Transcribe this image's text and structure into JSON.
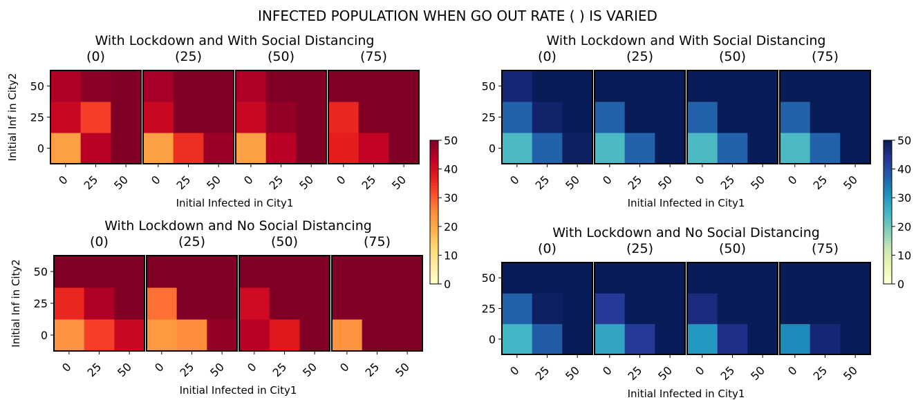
{
  "figure_title": "INFECTED POPULATION WHEN GO OUT RATE ( ) IS VARIED",
  "colors": {
    "YlOrRd": [
      "#ffffcc",
      "#ffeda0",
      "#fed976",
      "#feb24c",
      "#fd8d3c",
      "#fc4e2a",
      "#e31a1c",
      "#bd0026",
      "#800026"
    ],
    "YlGnBu": [
      "#ffffd9",
      "#edf8b1",
      "#c7e9b4",
      "#7fcdbb",
      "#41b6c4",
      "#1d91c0",
      "#225ea8",
      "#253494",
      "#081d58"
    ]
  },
  "chart_data": [
    {
      "type": "heatmap",
      "title": "With Lockdown and With Social Distancing",
      "colormap": "YlOrRd",
      "xlabel": "Initial Infected in City1",
      "ylabel": "Initial Inf in City2",
      "x_ticks": [
        "0",
        "25",
        "50"
      ],
      "y_ticks": [
        "0",
        "25",
        "50"
      ],
      "clim": [
        0,
        50
      ],
      "colorbar_ticks": [
        "0",
        "10",
        "20",
        "30",
        "40",
        "50"
      ],
      "panels": [
        {
          "rate": "(0)",
          "values": [
            [
              22,
              44,
              50
            ],
            [
              42,
              33,
              50
            ],
            [
              45,
              49,
              50
            ]
          ]
        },
        {
          "rate": "(25)",
          "values": [
            [
              22,
              35,
              47
            ],
            [
              42,
              50,
              50
            ],
            [
              46,
              50,
              50
            ]
          ]
        },
        {
          "rate": "(50)",
          "values": [
            [
              22,
              44,
              50
            ],
            [
              42,
              48,
              50
            ],
            [
              45,
              50,
              50
            ]
          ]
        },
        {
          "rate": "(75)",
          "values": [
            [
              37,
              43,
              50
            ],
            [
              36,
              50,
              50
            ],
            [
              50,
              50,
              50
            ]
          ]
        }
      ]
    },
    {
      "type": "heatmap",
      "title": "With Lockdown and No Social Distancing",
      "colormap": "YlOrRd",
      "xlabel": "Initial Infected in City1",
      "ylabel": "Initial Inf in City2",
      "x_ticks": [
        "0",
        "25",
        "50"
      ],
      "y_ticks": [
        "0",
        "25",
        "50"
      ],
      "clim": [
        0,
        50
      ],
      "panels": [
        {
          "rate": "(0)",
          "values": [
            [
              24,
              33,
              42
            ],
            [
              36,
              45,
              50
            ],
            [
              50,
              50,
              50
            ]
          ]
        },
        {
          "rate": "(25)",
          "values": [
            [
              23,
              25,
              48
            ],
            [
              28,
              50,
              50
            ],
            [
              50,
              50,
              50
            ]
          ]
        },
        {
          "rate": "(50)",
          "values": [
            [
              44,
              38,
              50
            ],
            [
              41,
              50,
              50
            ],
            [
              50,
              50,
              50
            ]
          ]
        },
        {
          "rate": "(75)",
          "values": [
            [
              24,
              50,
              50
            ],
            [
              50,
              50,
              50
            ],
            [
              50,
              50,
              50
            ]
          ]
        }
      ]
    },
    {
      "type": "heatmap",
      "title": "With Lockdown and With Social Distancing",
      "colormap": "YlGnBu",
      "xlabel": "Initial Infected in City1",
      "x_ticks": [
        "0",
        "25",
        "50"
      ],
      "y_ticks": [
        "0",
        "25",
        "50"
      ],
      "clim": [
        0,
        50
      ],
      "colorbar_ticks": [
        "0",
        "10",
        "20",
        "30",
        "40",
        "50"
      ],
      "panels": [
        {
          "rate": "(0)",
          "values": [
            [
              24,
              37,
              49
            ],
            [
              37,
              48,
              50
            ],
            [
              47,
              50,
              50
            ]
          ]
        },
        {
          "rate": "(25)",
          "values": [
            [
              24,
              37,
              50
            ],
            [
              37,
              50,
              50
            ],
            [
              50,
              50,
              50
            ]
          ]
        },
        {
          "rate": "(50)",
          "values": [
            [
              24,
              37,
              50
            ],
            [
              37,
              50,
              50
            ],
            [
              50,
              50,
              50
            ]
          ]
        },
        {
          "rate": "(75)",
          "values": [
            [
              24,
              37,
              50
            ],
            [
              37,
              50,
              50
            ],
            [
              50,
              50,
              50
            ]
          ]
        }
      ]
    },
    {
      "type": "heatmap",
      "title": "With Lockdown and No Social Distancing",
      "colormap": "YlGnBu",
      "xlabel": "Initial Infected in City1",
      "x_ticks": [
        "0",
        "25",
        "50"
      ],
      "y_ticks": [
        "0",
        "25",
        "50"
      ],
      "clim": [
        0,
        50
      ],
      "panels": [
        {
          "rate": "(0)",
          "values": [
            [
              25,
              38,
              50
            ],
            [
              37,
              49,
              50
            ],
            [
              50,
              50,
              50
            ]
          ]
        },
        {
          "rate": "(25)",
          "values": [
            [
              28,
              43,
              50
            ],
            [
              43,
              50,
              50
            ],
            [
              50,
              50,
              50
            ]
          ]
        },
        {
          "rate": "(50)",
          "values": [
            [
              30,
              45,
              50
            ],
            [
              46,
              50,
              50
            ],
            [
              50,
              50,
              50
            ]
          ]
        },
        {
          "rate": "(75)",
          "values": [
            [
              32,
              47,
              50
            ],
            [
              50,
              50,
              50
            ],
            [
              50,
              50,
              50
            ]
          ]
        }
      ]
    }
  ]
}
